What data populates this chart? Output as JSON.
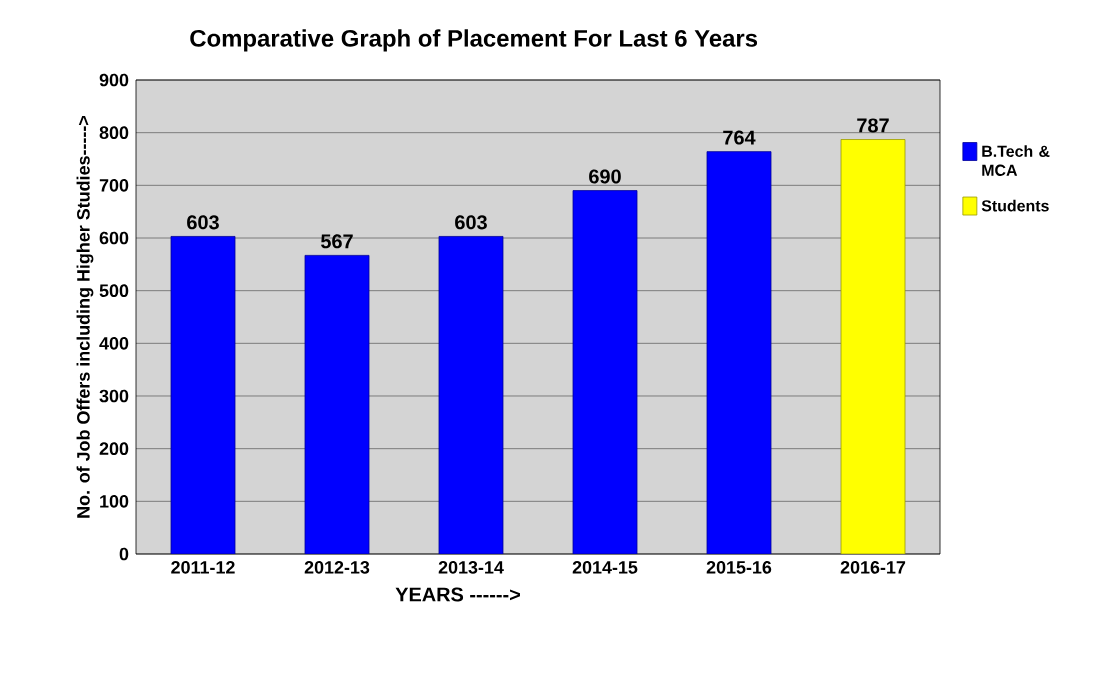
{
  "chart_data": {
    "type": "bar",
    "title": "Comparative Graph of Placement For Last 6 Years",
    "xlabel": "YEARS ------>",
    "ylabel": "No. of Job Offers including Higher Studies----->",
    "categories": [
      "2011-12",
      "2012-13",
      "2013-14",
      "2014-15",
      "2015-16",
      "2016-17"
    ],
    "series": [
      {
        "name": "B.Tech & MCA",
        "color": "#0000ff",
        "values": [
          603,
          567,
          603,
          690,
          764,
          null
        ]
      },
      {
        "name": "Students",
        "color": "#ffff00",
        "values": [
          null,
          null,
          null,
          null,
          null,
          787
        ]
      }
    ],
    "ylim": [
      0,
      900
    ],
    "yticks": [
      0,
      100,
      200,
      300,
      400,
      500,
      600,
      700,
      800,
      900
    ],
    "grid": "y",
    "legend": "right",
    "data_labels": true
  }
}
